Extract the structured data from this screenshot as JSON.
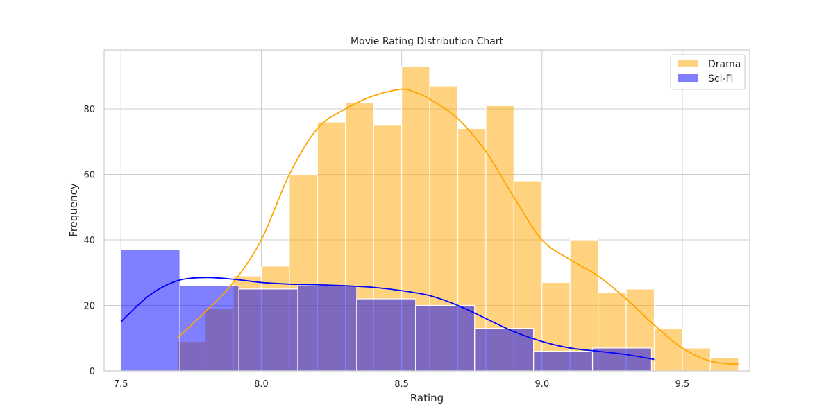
{
  "chart_data": {
    "type": "histogram",
    "title": "Movie Rating Distribution Chart",
    "xlabel": "Rating",
    "ylabel": "Frequency",
    "xlim": [
      7.44,
      9.74
    ],
    "ylim": [
      0,
      98
    ],
    "xticks": [
      7.5,
      8.0,
      8.5,
      9.0,
      9.5
    ],
    "xtick_labels": [
      "7.5",
      "8.0",
      "8.5",
      "9.0",
      "9.5"
    ],
    "yticks": [
      0,
      20,
      40,
      60,
      80
    ],
    "ytick_labels": [
      "0",
      "20",
      "40",
      "60",
      "80"
    ],
    "grid": true,
    "legend_position": "top-right",
    "series": [
      {
        "name": "Drama",
        "color": "#ffa500",
        "alpha": 0.5,
        "bin_edges": [
          7.7,
          7.8,
          7.9,
          8.0,
          8.1,
          8.2,
          8.3,
          8.4,
          8.5,
          8.6,
          8.7,
          8.8,
          8.9,
          9.0,
          9.1,
          9.2,
          9.3,
          9.4,
          9.5,
          9.6,
          9.7
        ],
        "counts": [
          9,
          19,
          29,
          32,
          60,
          76,
          82,
          75,
          93,
          87,
          74,
          81,
          58,
          27,
          40,
          24,
          25,
          13,
          7,
          4
        ],
        "kde": {
          "x": [
            7.7,
            7.8,
            7.9,
            8.0,
            8.1,
            8.2,
            8.3,
            8.4,
            8.5,
            8.55,
            8.6,
            8.7,
            8.8,
            8.9,
            9.0,
            9.1,
            9.2,
            9.3,
            9.4,
            9.5,
            9.6,
            9.7
          ],
          "y": [
            10,
            18,
            27,
            40,
            60,
            74,
            80,
            84,
            86,
            85,
            83,
            77,
            67,
            53,
            40,
            34,
            29,
            22,
            14,
            7,
            3,
            2
          ]
        }
      },
      {
        "name": "Sci-Fi",
        "color": "#0000ff",
        "alpha": 0.5,
        "bin_edges": [
          7.5,
          7.71,
          7.92,
          8.13,
          8.34,
          8.55,
          8.76,
          8.97,
          9.18,
          9.39
        ],
        "counts": [
          37,
          26,
          25,
          26,
          22,
          20,
          13,
          6,
          7
        ],
        "kde": {
          "x": [
            7.5,
            7.6,
            7.7,
            7.8,
            7.9,
            8.0,
            8.1,
            8.2,
            8.3,
            8.4,
            8.5,
            8.6,
            8.7,
            8.8,
            8.9,
            9.0,
            9.1,
            9.2,
            9.3,
            9.4
          ],
          "y": [
            15,
            23,
            27.5,
            28.5,
            28,
            27,
            26.5,
            26.3,
            26,
            25.5,
            24.5,
            23,
            20,
            16,
            12,
            9,
            7,
            6,
            5,
            3.5
          ]
        }
      }
    ]
  }
}
